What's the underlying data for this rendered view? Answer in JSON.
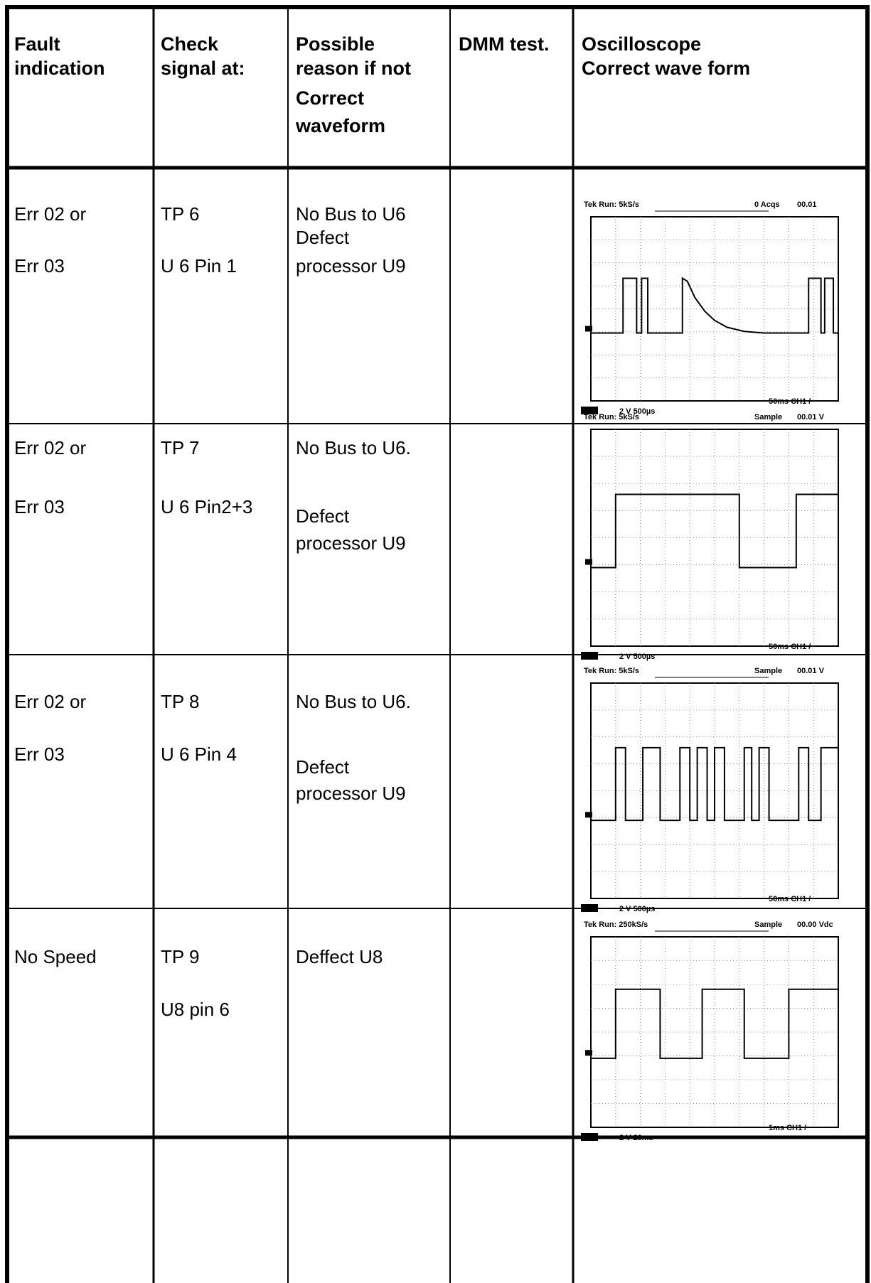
{
  "table": {
    "header": [
      [
        "Fault",
        "indication"
      ],
      [
        "Check",
        "signal at:"
      ],
      [
        "Possible",
        "reason if not",
        "Correct",
        "waveform"
      ],
      [
        "DMM test."
      ],
      [
        "Oscilloscope",
        "Correct wave form"
      ]
    ],
    "rows": [
      {
        "fault": [
          "Err 02  or",
          "Err 03"
        ],
        "check": [
          "TP 6",
          "U 6 Pin 1"
        ],
        "reason": [
          "No Bus to U6",
          "Defect",
          "processor U9"
        ],
        "scope": {
          "top_left": "Tek Run: 5kS/s",
          "top_right": "0 Acqs",
          "readout": "00.01",
          "bottom_left": "2 V 500µs",
          "bottom_right": "50ms CH1 /"
        }
      },
      {
        "fault": [
          "Err 02  or",
          "Err 03"
        ],
        "check": [
          "TP 7",
          "U 6 Pin2+3"
        ],
        "reason": [
          "No Bus to U6.",
          "Defect",
          "processor U9"
        ],
        "scope": {
          "top_left": "Tek Run: 5kS/s",
          "top_right": "Sample",
          "readout": "00.01 V",
          "bottom_left": "2 V 500µs",
          "bottom_right": "50ms CH1 /"
        }
      },
      {
        "fault": [
          "Err 02  or",
          "Err 03"
        ],
        "check": [
          "TP 8",
          "U 6 Pin 4"
        ],
        "reason": [
          "No Bus to U6.",
          "Defect",
          "processor U9"
        ],
        "scope": {
          "top_left": "Tek Run: 5kS/s",
          "top_right": "Sample",
          "readout": "00.01 V",
          "bottom_left": "2 V 500µs",
          "bottom_right": "50ms CH1 /"
        }
      },
      {
        "fault": [
          "No Speed"
        ],
        "check": [
          "TP 9",
          "U8 pin 6"
        ],
        "reason": [
          "Deffect U8"
        ],
        "scope": {
          "top_left": "Tek Run: 250kS/s",
          "top_right": "Sample",
          "readout": "00.00 Vdc",
          "bottom_left": "2 V 20ms",
          "bottom_right": "1ms CH1 /"
        }
      }
    ]
  }
}
